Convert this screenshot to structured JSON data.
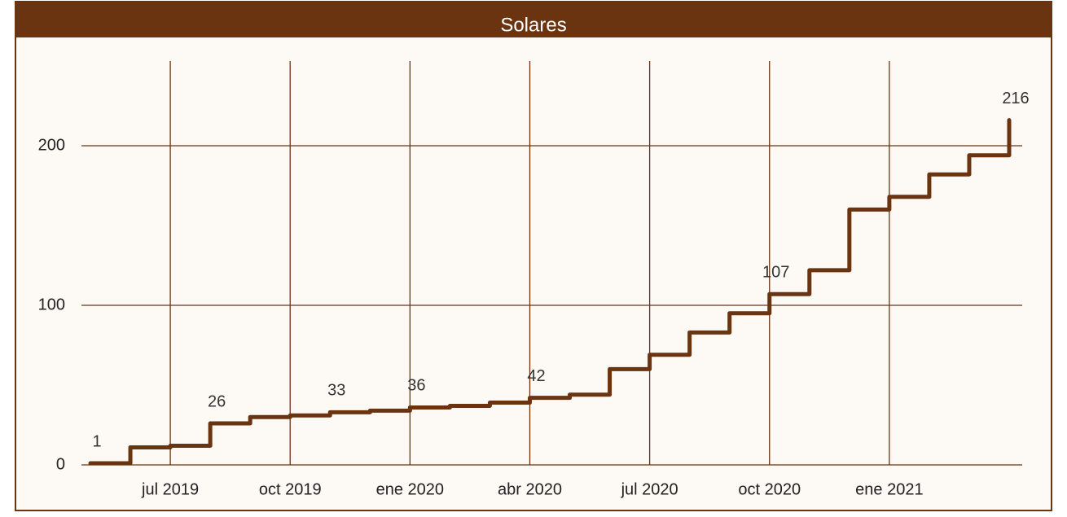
{
  "chart_data": {
    "type": "line",
    "title": "Solares",
    "step": true,
    "color": "#6b3410",
    "grid": true,
    "x": [
      "2019-05",
      "2019-06",
      "2019-07",
      "2019-08",
      "2019-09",
      "2019-10",
      "2019-11",
      "2019-12",
      "2020-01",
      "2020-02",
      "2020-03",
      "2020-04",
      "2020-05",
      "2020-06",
      "2020-07",
      "2020-08",
      "2020-09",
      "2020-10",
      "2020-11",
      "2020-12",
      "2021-01",
      "2021-02",
      "2021-03",
      "2021-04"
    ],
    "values": [
      1,
      11,
      12,
      26,
      30,
      31,
      33,
      34,
      36,
      37,
      39,
      42,
      44,
      60,
      69,
      83,
      95,
      107,
      122,
      160,
      168,
      182,
      194,
      216
    ],
    "value_labels": [
      "1",
      null,
      null,
      "26",
      null,
      null,
      "33",
      null,
      "36",
      null,
      null,
      "42",
      null,
      null,
      null,
      null,
      null,
      "107",
      null,
      null,
      null,
      null,
      null,
      "216"
    ],
    "xlim": [
      "2019-05",
      "2021-04"
    ],
    "xticks": [
      {
        "value": "2019-07",
        "label": "jul 2019"
      },
      {
        "value": "2019-10",
        "label": "oct 2019"
      },
      {
        "value": "2020-01",
        "label": "ene 2020"
      },
      {
        "value": "2020-04",
        "label": "abr 2020"
      },
      {
        "value": "2020-07",
        "label": "jul 2020"
      },
      {
        "value": "2020-10",
        "label": "oct 2020"
      },
      {
        "value": "2021-01",
        "label": "ene 2021"
      }
    ],
    "ylim": [
      0,
      250
    ],
    "yticks": [
      0,
      100,
      200
    ]
  }
}
